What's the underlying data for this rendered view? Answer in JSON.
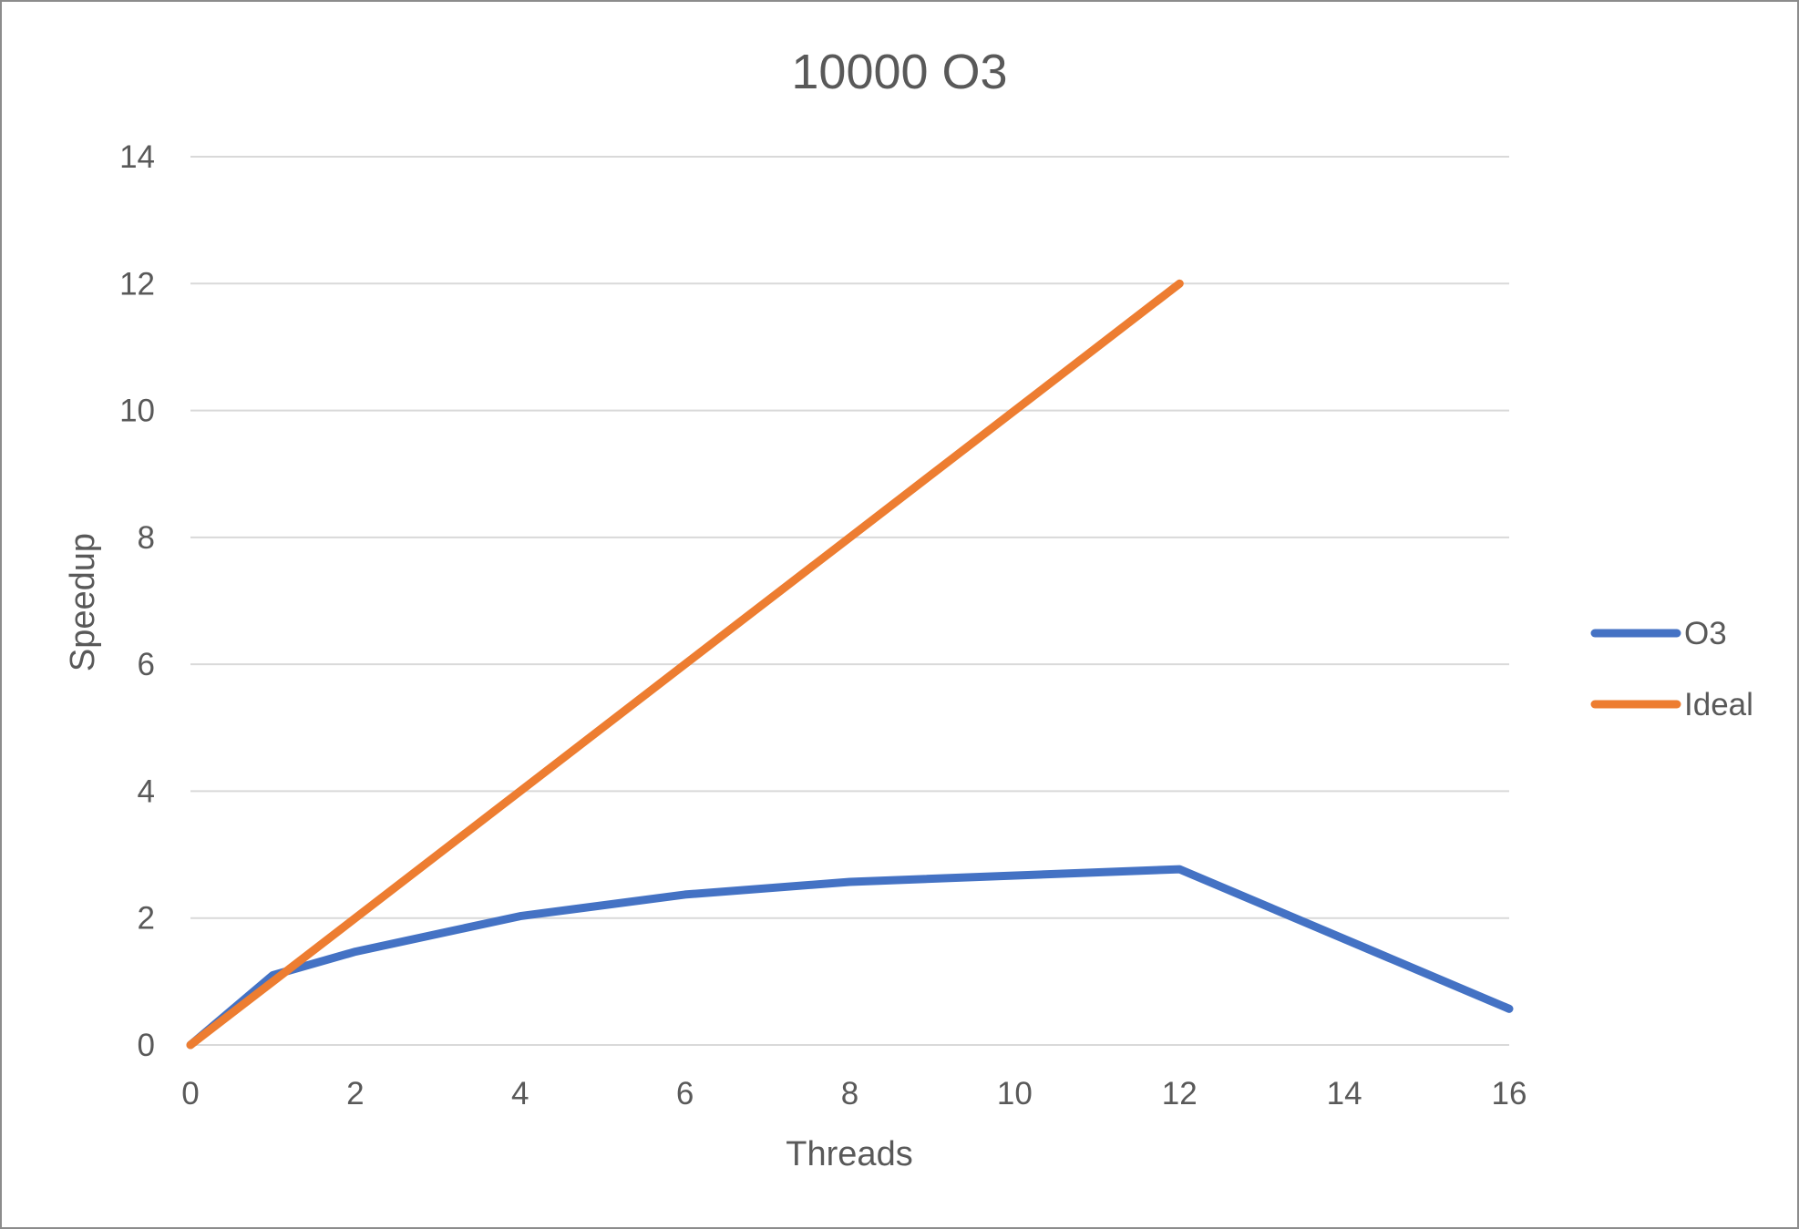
{
  "chart_data": {
    "type": "line",
    "title": "10000 O3",
    "xlabel": "Threads",
    "ylabel": "Speedup",
    "xlim": [
      0,
      16
    ],
    "ylim": [
      0,
      14
    ],
    "x_ticks": [
      0,
      2,
      4,
      6,
      8,
      10,
      12,
      14,
      16
    ],
    "y_ticks": [
      0,
      2,
      4,
      6,
      8,
      10,
      12,
      14
    ],
    "grid": true,
    "legend_position": "right",
    "series": [
      {
        "name": "O3",
        "color": "#4472c4",
        "x": [
          0,
          1,
          2,
          4,
          6,
          8,
          12,
          16
        ],
        "y": [
          0.0,
          1.1,
          1.47,
          2.03,
          2.37,
          2.57,
          2.77,
          0.57
        ]
      },
      {
        "name": "Ideal",
        "color": "#ed7d31",
        "x": [
          0,
          1,
          2,
          4,
          6,
          8,
          12
        ],
        "y": [
          0,
          1,
          2,
          4,
          6,
          8,
          12
        ]
      }
    ]
  }
}
